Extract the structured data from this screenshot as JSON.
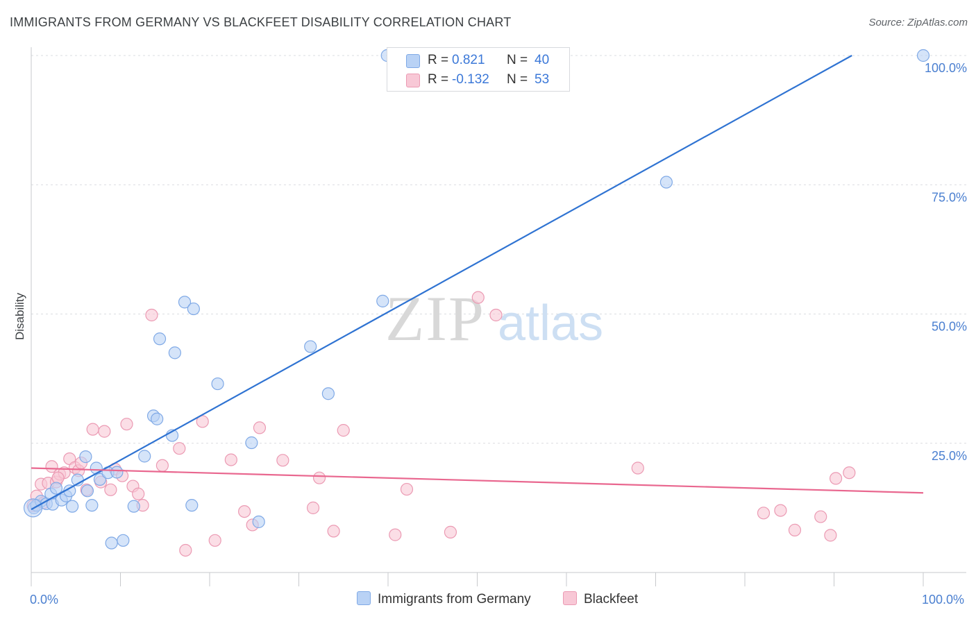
{
  "title": "IMMIGRANTS FROM GERMANY VS BLACKFEET DISABILITY CORRELATION CHART",
  "source": "Source: ZipAtlas.com",
  "watermark": {
    "zip": "ZIP",
    "atlas": "atlas"
  },
  "colors": {
    "blue_fill": "#b9d2f5",
    "blue_stroke": "#7fa9e6",
    "blue_line": "#2f73d2",
    "pink_fill": "#f8c8d6",
    "pink_stroke": "#eb9ab3",
    "pink_line": "#e9678f",
    "axis_text": "#4a7fd0"
  },
  "legend": {
    "rows": [
      {
        "r_label": "R =",
        "r_value": "0.821",
        "n_label": "N =",
        "n_value": "40"
      },
      {
        "r_label": "R =",
        "r_value": "-0.132",
        "n_label": "N =",
        "n_value": "53"
      }
    ]
  },
  "bottom_legend": {
    "series1": "Immigrants from Germany",
    "series2": "Blackfeet"
  },
  "chart_data": {
    "type": "scatter",
    "title": "IMMIGRANTS FROM GERMANY VS BLACKFEET DISABILITY CORRELATION CHART",
    "xlabel": "",
    "ylabel": "Disability",
    "xlim": [
      0,
      100
    ],
    "ylim": [
      0,
      100
    ],
    "x_tick_labels": [
      "0.0%",
      "100.0%"
    ],
    "y_tick_labels": [
      "25.0%",
      "50.0%",
      "75.0%",
      "100.0%"
    ],
    "y_ticks": [
      25,
      50,
      75,
      100
    ],
    "grid": true,
    "series": [
      {
        "name": "Immigrants from Germany",
        "color": "blue",
        "trend": {
          "x": [
            0,
            92
          ],
          "y": [
            12.2,
            100
          ]
        },
        "points": [
          [
            0.3,
            12.5
          ],
          [
            0.6,
            13.0
          ],
          [
            1.1,
            13.8
          ],
          [
            1.7,
            13.3
          ],
          [
            2.2,
            15.2
          ],
          [
            2.8,
            16.3
          ],
          [
            2.4,
            13.2
          ],
          [
            3.4,
            14.0
          ],
          [
            3.9,
            14.8
          ],
          [
            4.3,
            15.8
          ],
          [
            4.6,
            12.8
          ],
          [
            5.2,
            17.9
          ],
          [
            6.1,
            22.4
          ],
          [
            6.8,
            13.0
          ],
          [
            6.3,
            15.8
          ],
          [
            7.7,
            18.0
          ],
          [
            7.3,
            20.2
          ],
          [
            8.6,
            19.3
          ],
          [
            9.0,
            5.7
          ],
          [
            9.6,
            19.4
          ],
          [
            10.3,
            6.2
          ],
          [
            11.5,
            12.8
          ],
          [
            12.7,
            22.5
          ],
          [
            13.7,
            30.3
          ],
          [
            14.1,
            29.7
          ],
          [
            14.4,
            45.2
          ],
          [
            16.1,
            42.5
          ],
          [
            17.2,
            52.3
          ],
          [
            18.2,
            51.0
          ],
          [
            18.0,
            13.0
          ],
          [
            15.8,
            26.5
          ],
          [
            20.9,
            36.5
          ],
          [
            24.7,
            25.1
          ],
          [
            25.5,
            9.8
          ],
          [
            31.3,
            43.7
          ],
          [
            33.3,
            34.6
          ],
          [
            39.4,
            52.5
          ],
          [
            39.9,
            100
          ],
          [
            71.2,
            75.5
          ],
          [
            100,
            100
          ]
        ]
      },
      {
        "name": "Blackfeet",
        "color": "pink",
        "trend": {
          "x": [
            0,
            100
          ],
          "y": [
            20.2,
            15.4
          ]
        },
        "points": [
          [
            0.2,
            12.9
          ],
          [
            0.6,
            14.8
          ],
          [
            1.1,
            17.1
          ],
          [
            1.9,
            17.3
          ],
          [
            2.3,
            20.5
          ],
          [
            2.8,
            17.5
          ],
          [
            3.2,
            19.0
          ],
          [
            3.7,
            19.3
          ],
          [
            4.3,
            22.0
          ],
          [
            4.9,
            20.3
          ],
          [
            5.3,
            19.7
          ],
          [
            5.6,
            21.2
          ],
          [
            6.2,
            16.0
          ],
          [
            6.9,
            27.7
          ],
          [
            7.8,
            17.5
          ],
          [
            8.2,
            27.3
          ],
          [
            8.9,
            16.0
          ],
          [
            9.4,
            20.0
          ],
          [
            10.2,
            18.7
          ],
          [
            10.7,
            28.7
          ],
          [
            11.4,
            16.7
          ],
          [
            12.0,
            15.2
          ],
          [
            12.5,
            13.0
          ],
          [
            13.5,
            49.8
          ],
          [
            14.7,
            20.7
          ],
          [
            16.6,
            24.0
          ],
          [
            17.3,
            4.3
          ],
          [
            19.2,
            29.2
          ],
          [
            20.6,
            6.2
          ],
          [
            22.4,
            21.8
          ],
          [
            23.9,
            11.8
          ],
          [
            24.8,
            9.2
          ],
          [
            25.6,
            28.0
          ],
          [
            31.6,
            12.5
          ],
          [
            32.3,
            18.3
          ],
          [
            33.9,
            8.0
          ],
          [
            35.0,
            27.5
          ],
          [
            40.8,
            7.3
          ],
          [
            47.0,
            7.8
          ],
          [
            50.1,
            53.2
          ],
          [
            52.1,
            49.8
          ],
          [
            68.0,
            20.2
          ],
          [
            82.1,
            11.5
          ],
          [
            84.0,
            12.0
          ],
          [
            85.6,
            8.2
          ],
          [
            88.5,
            10.8
          ],
          [
            89.6,
            7.2
          ],
          [
            90.2,
            18.2
          ],
          [
            91.7,
            19.3
          ],
          [
            42.1,
            16.1
          ],
          [
            28.2,
            21.7
          ],
          [
            3.0,
            18.3
          ],
          [
            1.4,
            13.5
          ]
        ]
      }
    ]
  }
}
